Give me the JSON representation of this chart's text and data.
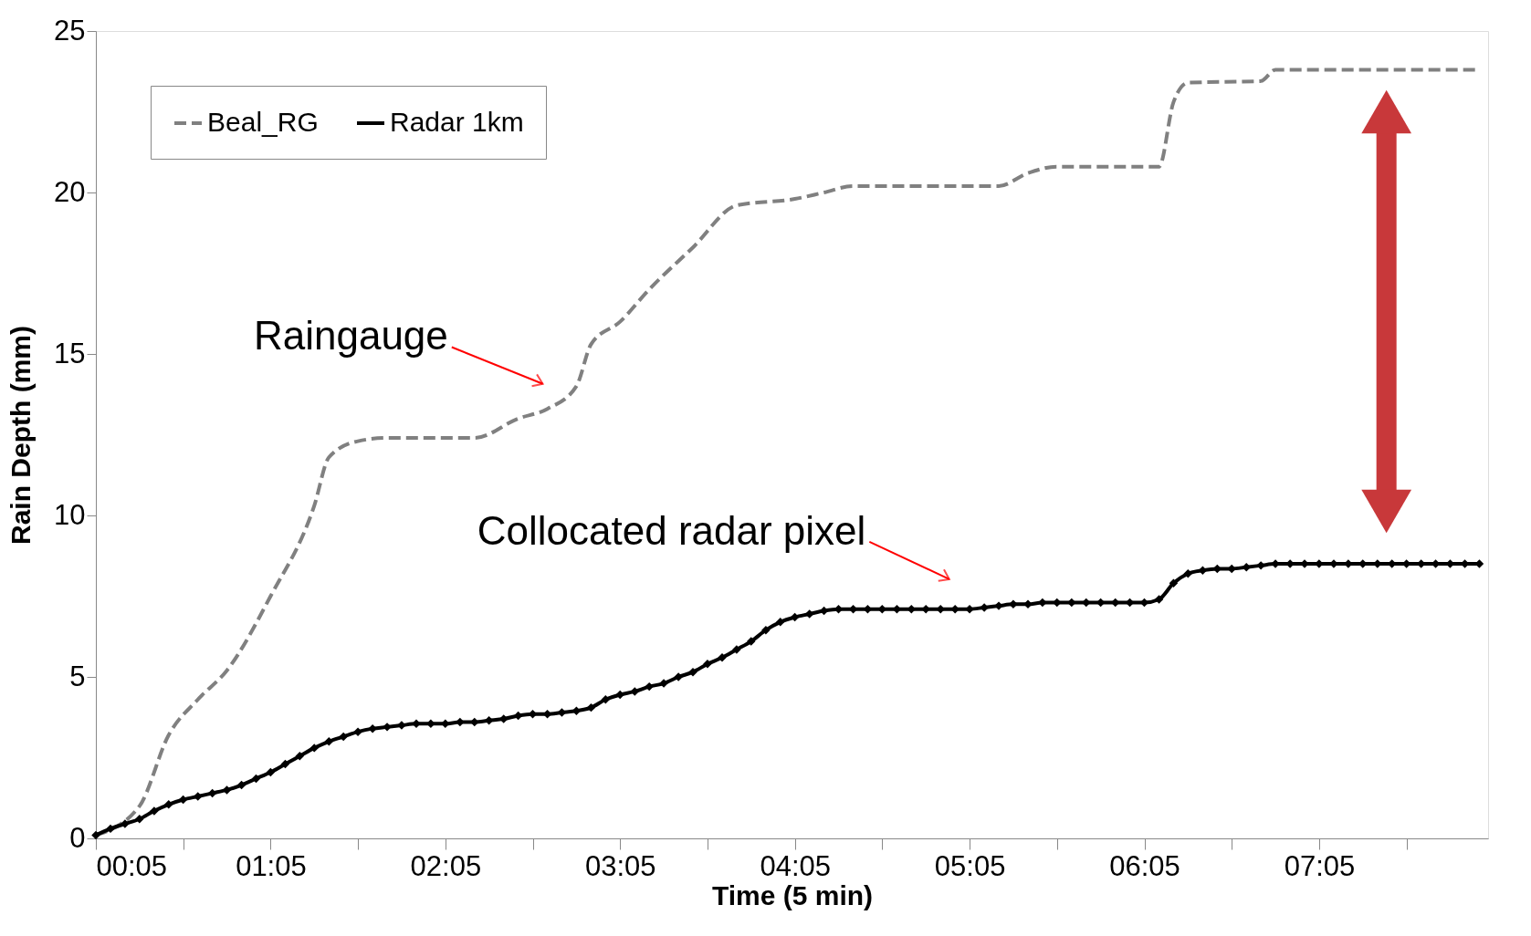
{
  "chart_data": {
    "type": "line",
    "xlabel": "Time (5 min)",
    "ylabel": "Rain Depth (mm)",
    "xlim": [
      0.0833,
      8.05
    ],
    "ylim": [
      0,
      25
    ],
    "xticks": [
      {
        "value": 0.0833,
        "label": "00:05"
      },
      {
        "value": 0.5833,
        "label": null
      },
      {
        "value": 1.0833,
        "label": "01:05"
      },
      {
        "value": 1.5833,
        "label": null
      },
      {
        "value": 2.0833,
        "label": "02:05"
      },
      {
        "value": 2.5833,
        "label": null
      },
      {
        "value": 3.0833,
        "label": "03:05"
      },
      {
        "value": 3.5833,
        "label": null
      },
      {
        "value": 4.0833,
        "label": "04:05"
      },
      {
        "value": 4.5833,
        "label": null
      },
      {
        "value": 5.0833,
        "label": "05:05"
      },
      {
        "value": 5.5833,
        "label": null
      },
      {
        "value": 6.0833,
        "label": "06:05"
      },
      {
        "value": 6.5833,
        "label": null
      },
      {
        "value": 7.0833,
        "label": "07:05"
      },
      {
        "value": 7.5833,
        "label": null
      }
    ],
    "yticks": [
      0,
      5,
      10,
      15,
      20,
      25
    ],
    "grid": false,
    "legend": "top left",
    "series": [
      {
        "name": "Beal_RG",
        "color": "#808080",
        "line_style": "dashed",
        "marker": "none",
        "x": [
          0.0833,
          0.333,
          0.5,
          0.667,
          0.833,
          1.083,
          1.333,
          1.417,
          1.583,
          1.75,
          2.25,
          2.5,
          2.667,
          2.833,
          2.917,
          3.083,
          3.25,
          3.5,
          3.75,
          4.083,
          4.25,
          4.417,
          5.25,
          5.417,
          5.583,
          6.167,
          6.25,
          6.333,
          6.75,
          6.833,
          8.0
        ],
        "values": [
          0.1,
          1.0,
          3.2,
          4.3,
          5.2,
          7.5,
          10.3,
          11.8,
          12.3,
          12.4,
          12.4,
          13.0,
          13.3,
          14.0,
          15.3,
          16.0,
          17.0,
          18.3,
          19.6,
          19.8,
          20.0,
          20.2,
          20.2,
          20.6,
          20.8,
          20.8,
          22.8,
          23.4,
          23.45,
          23.8,
          23.8
        ]
      },
      {
        "name": "Radar 1km",
        "color": "#000000",
        "line_style": "solid",
        "marker": "diamond",
        "x": [
          0.0833,
          0.167,
          0.25,
          0.333,
          0.417,
          0.5,
          0.583,
          0.667,
          0.75,
          0.833,
          0.917,
          1.0,
          1.083,
          1.167,
          1.25,
          1.333,
          1.417,
          1.5,
          1.583,
          1.667,
          1.75,
          1.833,
          1.917,
          2.0,
          2.083,
          2.167,
          2.25,
          2.333,
          2.417,
          2.5,
          2.583,
          2.667,
          2.75,
          2.833,
          2.917,
          3.0,
          3.083,
          3.167,
          3.25,
          3.333,
          3.417,
          3.5,
          3.583,
          3.667,
          3.75,
          3.833,
          3.917,
          4.0,
          4.083,
          4.167,
          4.25,
          4.333,
          4.417,
          4.5,
          4.583,
          4.667,
          4.75,
          4.833,
          4.917,
          5.0,
          5.083,
          5.167,
          5.25,
          5.333,
          5.417,
          5.5,
          5.583,
          5.667,
          5.75,
          5.833,
          5.917,
          6.0,
          6.083,
          6.167,
          6.25,
          6.333,
          6.417,
          6.5,
          6.583,
          6.667,
          6.75,
          6.833,
          6.917,
          7.0,
          7.083,
          7.167,
          7.25,
          7.333,
          7.417,
          7.5,
          7.583,
          7.667,
          7.75,
          7.833,
          7.917,
          8.0
        ],
        "values": [
          0.1,
          0.3,
          0.45,
          0.6,
          0.85,
          1.05,
          1.2,
          1.3,
          1.4,
          1.5,
          1.65,
          1.85,
          2.05,
          2.3,
          2.55,
          2.8,
          3.0,
          3.15,
          3.3,
          3.4,
          3.45,
          3.5,
          3.55,
          3.55,
          3.55,
          3.6,
          3.6,
          3.65,
          3.7,
          3.8,
          3.85,
          3.85,
          3.9,
          3.95,
          4.05,
          4.3,
          4.45,
          4.55,
          4.7,
          4.8,
          5.0,
          5.15,
          5.4,
          5.6,
          5.85,
          6.1,
          6.45,
          6.7,
          6.85,
          6.95,
          7.05,
          7.1,
          7.1,
          7.1,
          7.1,
          7.1,
          7.1,
          7.1,
          7.1,
          7.1,
          7.1,
          7.15,
          7.2,
          7.25,
          7.25,
          7.3,
          7.3,
          7.3,
          7.3,
          7.3,
          7.3,
          7.3,
          7.3,
          7.4,
          7.9,
          8.2,
          8.3,
          8.35,
          8.35,
          8.4,
          8.45,
          8.5,
          8.5,
          8.5,
          8.5,
          8.5,
          8.5,
          8.5,
          8.5,
          8.5,
          8.5,
          8.5,
          8.5,
          8.5,
          8.5,
          8.5
        ]
      }
    ],
    "annotations": [
      "Raingauge",
      "Collocated radar pixel"
    ]
  }
}
